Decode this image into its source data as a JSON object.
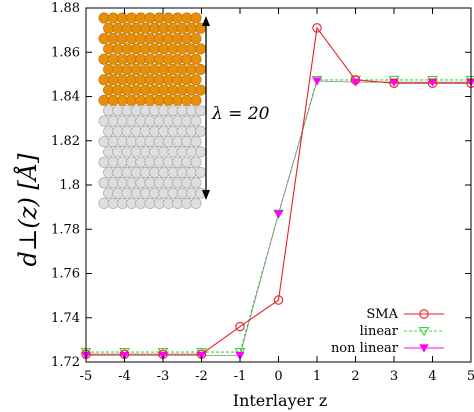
{
  "chart_data": {
    "type": "line",
    "xlabel": "Interlayer z",
    "ylabel": "d⊥(z) [Å]",
    "xlim": [
      -5,
      5
    ],
    "ylim": [
      1.72,
      1.88
    ],
    "x_ticks": [
      "-5",
      "-4",
      "-3",
      "-2",
      "-1",
      "0",
      "1",
      "2",
      "3",
      "4",
      "5"
    ],
    "y_ticks": [
      "1.72",
      "1.74",
      "1.76",
      "1.78",
      "1.8",
      "1.82",
      "1.84",
      "1.86",
      "1.88"
    ],
    "x": [
      -5,
      -4,
      -3,
      -2,
      -1,
      0,
      1,
      2,
      3,
      4,
      5
    ],
    "series": [
      {
        "name": "SMA",
        "color": "#e8202a",
        "marker": "open-circle",
        "line": "solid",
        "values": [
          1.7235,
          1.7235,
          1.7235,
          1.7235,
          1.736,
          1.748,
          1.871,
          1.8475,
          1.846,
          1.846,
          1.846
        ]
      },
      {
        "name": "linear",
        "color": "#33dd33",
        "marker": "open-triangle-down",
        "line": "dashed",
        "values": [
          1.7245,
          1.7245,
          1.7245,
          1.7245,
          1.7245,
          1.787,
          1.8475,
          1.8475,
          1.8475,
          1.8475,
          1.8475
        ]
      },
      {
        "name": "non linear",
        "color": "#ff00ff",
        "marker": "filled-triangle-down",
        "line": "solid-thin",
        "values": [
          1.723,
          1.723,
          1.723,
          1.723,
          1.723,
          1.787,
          1.847,
          1.8465,
          1.8465,
          1.8465,
          1.8465
        ]
      }
    ],
    "legend_position": "bottom-right",
    "annotation": {
      "text": "λ = 20",
      "lambda": "λ",
      "equals": "= 20"
    },
    "inset": {
      "description_colors": {
        "top": "#e6900a",
        "bottom": "#dedede"
      }
    }
  }
}
